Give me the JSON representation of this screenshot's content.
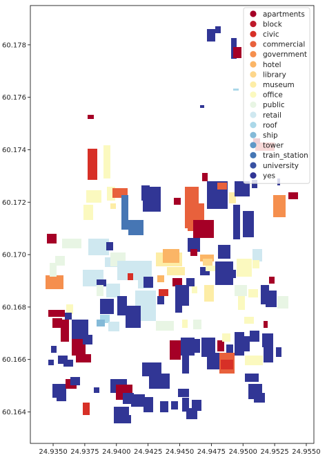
{
  "chart_data": {
    "type": "map",
    "x_ticks": [
      "24.9350",
      "24.9375",
      "24.9400",
      "24.9425",
      "24.9450",
      "24.9475",
      "24.9500",
      "24.9525",
      "24.9550"
    ],
    "y_ticks": [
      "60.164",
      "60.166",
      "60.168",
      "60.170",
      "60.172",
      "60.174",
      "60.176",
      "60.178"
    ],
    "xlim": [
      24.9332,
      24.9556
    ],
    "ylim": [
      60.1628,
      60.1795
    ],
    "legend_position": "top-right",
    "categories": [
      {
        "name": "apartments",
        "color": "#a50026"
      },
      {
        "name": "block",
        "color": "#be1a2b"
      },
      {
        "name": "civic",
        "color": "#d73027"
      },
      {
        "name": "commercial",
        "color": "#e8613c"
      },
      {
        "name": "government",
        "color": "#f58f4e"
      },
      {
        "name": "hotel",
        "color": "#fbb566"
      },
      {
        "name": "library",
        "color": "#fdd68b"
      },
      {
        "name": "museum",
        "color": "#fdeda6"
      },
      {
        "name": "office",
        "color": "#fbf9bf"
      },
      {
        "name": "public",
        "color": "#e8f5e4"
      },
      {
        "name": "retail",
        "color": "#cfe8f0"
      },
      {
        "name": "roof",
        "color": "#abd8e9"
      },
      {
        "name": "ship",
        "color": "#84bad8"
      },
      {
        "name": "tower",
        "color": "#5f98c7"
      },
      {
        "name": "train_station",
        "color": "#4676b4"
      },
      {
        "name": "university",
        "color": "#3951a2"
      },
      {
        "name": "yes",
        "color": "#313695"
      }
    ]
  }
}
